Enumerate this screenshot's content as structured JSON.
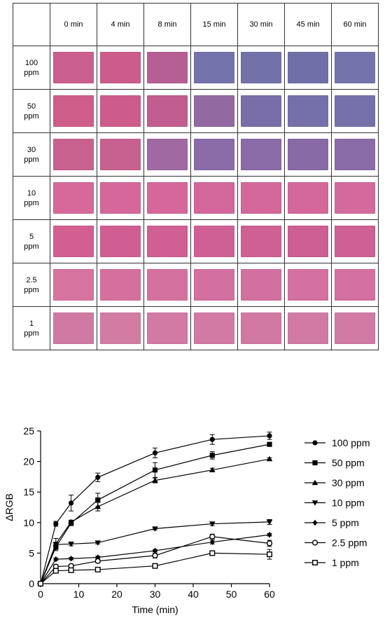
{
  "grid": {
    "time_labels": [
      "0 min",
      "4 min",
      "8 min",
      "15 min",
      "30 min",
      "45 min",
      "60 min"
    ],
    "rows": [
      {
        "label_line1": "100",
        "label_line2": "ppm",
        "swatches": [
          "#c95f8f",
          "#cb5c8c",
          "#b55f95",
          "#7474ac",
          "#7272a9",
          "#7070a8",
          "#7474ad"
        ]
      },
      {
        "label_line1": "50",
        "label_line2": "ppm",
        "swatches": [
          "#cf5d8a",
          "#cd5c8c",
          "#c15d90",
          "#9269a0",
          "#7a6ea8",
          "#7570a9",
          "#7572aa"
        ]
      },
      {
        "label_line1": "30",
        "label_line2": "ppm",
        "swatches": [
          "#c9628f",
          "#c7618f",
          "#9f6aa2",
          "#8a6ba8",
          "#8a6aa7",
          "#886ba6",
          "#896ca8"
        ]
      },
      {
        "label_line1": "10",
        "label_line2": "ppm",
        "swatches": [
          "#d6689a",
          "#d5679a",
          "#d5679a",
          "#d3679b",
          "#d4689a",
          "#d4679a",
          "#d46a9c"
        ]
      },
      {
        "label_line1": "5",
        "label_line2": "ppm",
        "swatches": [
          "#d25e92",
          "#d05e92",
          "#d05f93",
          "#cf6095",
          "#ce6094",
          "#cd5f94",
          "#ce6094"
        ]
      },
      {
        "label_line1": "2.5",
        "label_line2": "ppm",
        "swatches": [
          "#d6739f",
          "#d5709e",
          "#d5719f",
          "#d370a0",
          "#d2709f",
          "#d471a0",
          "#d471a0"
        ]
      },
      {
        "label_line1": "1",
        "label_line2": "ppm",
        "swatches": [
          "#d07aa3",
          "#d27ca4",
          "#d27aa3",
          "#d27aa4",
          "#d179a3",
          "#d07aa4",
          "#d17aa3"
        ]
      }
    ]
  },
  "chart_data": {
    "type": "line",
    "xlabel": "Time (min)",
    "ylabel": "ΔRGB",
    "xlim": [
      0,
      60
    ],
    "ylim": [
      0,
      25
    ],
    "xticks": [
      0,
      10,
      20,
      30,
      40,
      50,
      60
    ],
    "yticks": [
      0,
      5,
      10,
      15,
      20,
      25
    ],
    "x": [
      0,
      4,
      8,
      15,
      30,
      45,
      60
    ],
    "legend_position": "right",
    "series": [
      {
        "name": "100 ppm",
        "marker": "circle-filled",
        "values": [
          0,
          9.8,
          13.2,
          17.4,
          21.4,
          23.6,
          24.2
        ],
        "errors": [
          0,
          0.4,
          1.3,
          0.7,
          0.8,
          0.8,
          0.6
        ]
      },
      {
        "name": "50 ppm",
        "marker": "square-filled",
        "values": [
          0,
          6.0,
          9.9,
          13.7,
          18.6,
          21.0,
          22.8
        ],
        "errors": [
          0,
          0.4,
          0.4,
          1.1,
          1.2,
          0.6,
          0.3
        ]
      },
      {
        "name": "30 ppm",
        "marker": "triangle-up",
        "values": [
          0,
          6.5,
          10.1,
          12.6,
          16.9,
          18.6,
          20.4
        ],
        "errors": [
          0,
          0.3,
          0.3,
          0.7,
          0.4,
          0.3,
          0.2
        ]
      },
      {
        "name": "10 ppm",
        "marker": "triangle-down",
        "values": [
          0,
          6.4,
          6.5,
          6.7,
          9.0,
          9.8,
          10.1
        ],
        "errors": [
          0,
          1.0,
          0.3,
          0.2,
          0.2,
          0.3,
          0.4
        ]
      },
      {
        "name": "5 ppm",
        "marker": "diamond-filled",
        "values": [
          0,
          4.0,
          4.1,
          4.3,
          5.4,
          6.8,
          8.0
        ],
        "errors": [
          0,
          0.2,
          0.2,
          0.2,
          0.2,
          0.3,
          0.2
        ]
      },
      {
        "name": "2.5 ppm",
        "marker": "circle-open",
        "values": [
          0,
          2.8,
          2.9,
          3.7,
          4.6,
          7.7,
          6.6
        ],
        "errors": [
          0,
          0.3,
          0.3,
          0.3,
          0.4,
          0.4,
          0.5
        ]
      },
      {
        "name": "1 ppm",
        "marker": "square-open",
        "values": [
          0,
          2.1,
          2.2,
          2.3,
          2.9,
          5.0,
          4.8
        ],
        "errors": [
          0,
          0.2,
          0.3,
          0.2,
          0.2,
          0.3,
          0.8
        ]
      }
    ]
  }
}
